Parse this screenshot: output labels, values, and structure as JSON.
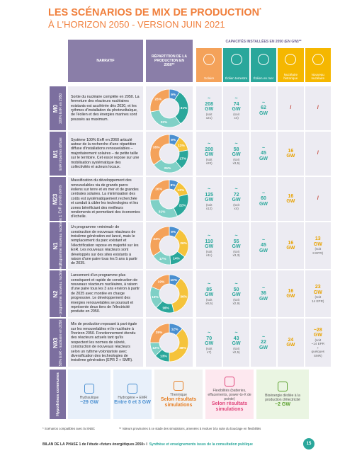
{
  "header": {
    "title": "LES SCÉNARIOS DE MIX DE PRODUCTION",
    "title_mark": "*",
    "subtitle": "À L'HORIZON 2050 - VERSION JUIN 2021"
  },
  "table": {
    "narratif": "NARRATIF",
    "repartition": "RÉPARTITION DE LA PRODUCTION EN 2050**",
    "capacites": "CAPACITÉS INSTALLÉES EN 2050 (EN GW)**",
    "columns": [
      "Solaire",
      "Éolien terrestre",
      "Éolien en mer",
      "Nucléaire historique",
      "Nouveau nucléaire"
    ],
    "rows": [
      {
        "code": "M0",
        "label": "100% EnR en 2050",
        "narrative": "Sortie du nucléaire complète en 2050. La fermeture des réacteurs nucléaires existants est accélérée dès 2030, et les rythmes d'installation du photovoltaïque, de l'éolien et des énergies marines sont poussés au maximum.",
        "shares": [
          9,
          31,
          32,
          28
        ],
        "share_labels": [
          "9%",
          "31%",
          "32%",
          "28%"
        ],
        "capacities": [
          [
            "~",
            "208",
            "GW",
            "(soit",
            "x21)"
          ],
          [
            "~",
            "74",
            "GW",
            "(soit",
            "x4)"
          ],
          [
            "~",
            "62",
            "GW"
          ],
          [
            "/"
          ],
          [
            "/"
          ]
        ]
      },
      {
        "code": "M1",
        "label": "EnR réparties diffuse",
        "narrative": "Système 100% EnR en 2060 articulé autour de la recherche d'une répartition diffuse d'installations renouvelables – majoritairement solaires – de petite taille sur le territoire. Cet essor repose sur une mobilisation systématique des collectivités et acteurs locaux.",
        "shares": [
          9,
          13,
          17,
          26,
          35
        ],
        "share_labels": [
          "9%",
          "13%",
          "17%",
          "26%",
          "35%"
        ],
        "capacities": [
          [
            "~",
            "200",
            "GW",
            "(soit",
            "x20)"
          ],
          [
            "~",
            "58",
            "GW",
            "(soit",
            "x3,5)"
          ],
          [
            "~",
            "45",
            "GW"
          ],
          [
            "16",
            "GW"
          ],
          [
            "/"
          ]
        ]
      },
      {
        "code": "M23",
        "label": "EnR grands parcs",
        "narrative": "Massification du développement des renouvelables via de grands parcs éoliens sur terre et en mer et de grandes centrales solaires. La minimisation des coûts est systématiquement recherchée et conduit à cibler les technologies et les zones bénéficiant des meilleurs rendements et permettant des économies d'échelle.",
        "shares": [
          8,
          13,
          22,
          31,
          26
        ],
        "share_labels": [
          "8%",
          "13%",
          "22%",
          "31%",
          "26%"
        ],
        "capacities": [
          [
            "~",
            "125",
            "GW",
            "(soit",
            "x12)"
          ],
          [
            "~",
            "72",
            "GW",
            "(soit",
            "x4)"
          ],
          [
            "~",
            "60",
            "GW"
          ],
          [
            "16",
            "GW"
          ],
          [
            "/"
          ]
        ]
      },
      {
        "code": "N1",
        "label": "EnR + programme nouveau nucléaire 1",
        "narrative": "Un programme «minimal» de construction de nouveaux réacteurs de troisième génération est lancé, mais le remplacement du parc existant et l'électrification repose en majorité sur les EnR. Les nouveaux réacteurs sont développés sur des sites existants à raison d'une paire tous les 5 ans à partir de 2035.",
        "shares": [
          9,
          26,
          14,
          17,
          34
        ],
        "share_labels": [
          "9%",
          "26%",
          "14%",
          "17%",
          "34%"
        ],
        "capacities": [
          [
            "~",
            "110",
            "GW",
            "(soit",
            "x11)"
          ],
          [
            "~",
            "55",
            "GW",
            "(soit",
            "x3,3)"
          ],
          [
            "~",
            "45",
            "GW"
          ],
          [
            "16",
            "GW"
          ],
          [
            "13",
            "GW",
            "(soit",
            "8 EPR)"
          ]
        ]
      },
      {
        "code": "N2",
        "label": "EnR + programme nouveau nucléaire 2",
        "narrative": "Lancement d'un programme plus conséquent et rapide de construction de nouveaux réacteurs nucléaires, à raison d'une paire tous les 3 ans environ à partir de 2035 avec montée en charge progressive. Le développement des énergies renouvelables se poursuit et représente deux tiers de l'électricité produite en 2050.",
        "shares": [
          10,
          36,
          16,
          19,
          19
        ],
        "share_labels": [
          "10%",
          "36%",
          "16%",
          "19%",
          "19%"
        ],
        "capacities": [
          [
            "~",
            "85",
            "GW",
            "(soit",
            "x8,5)"
          ],
          [
            "~",
            "50",
            "GW",
            "(soit",
            "x2,9)"
          ],
          [
            "~",
            "36",
            "GW"
          ],
          [
            "16",
            "GW"
          ],
          [
            "23",
            "GW",
            "(soit",
            "14 EPR)"
          ]
        ]
      },
      {
        "code": "N03",
        "label": "50% EnR - nucléaire en 2050",
        "narrative": "Mix de production reposant à part égale sur les renouvelables et le nucléaire à l'horizon 2050. Fonctionnement étendu des réacteurs actuels tant qu'ils respectent les normes de sûreté, construction de nouveaux réacteurs selon un rythme volontariste avec diversification des technologies de troisième génération (EPR 2 + SMR).",
        "shares": [
          12,
          38,
          13,
          12,
          25
        ],
        "share_labels": [
          "12%",
          "38%",
          "13%",
          "12%",
          "25%"
        ],
        "capacities": [
          [
            "~",
            "70",
            "GW",
            "(soit",
            "x7)"
          ],
          [
            "~",
            "43",
            "GW",
            "(soit",
            "x2,5)"
          ],
          [
            "~",
            "22",
            "GW"
          ],
          [
            "24",
            "GW"
          ],
          [
            "~28",
            "GW",
            "(soit",
            "~14 EPR",
            "+",
            "quelques",
            "SMR)"
          ]
        ]
      }
    ],
    "share_colors": {
      "M0": [
        "#4a8fd0",
        "#2aa79b",
        "#7fd0c6",
        "#f4a25a"
      ],
      "other": [
        "#4a8fd0",
        "#f5c33b",
        "#2aa79b",
        "#7fd0c6",
        "#f4a25a"
      ]
    },
    "common": {
      "label": "Hypothèses communes",
      "items": [
        {
          "name": "Hydraulique",
          "value": "~29 GW"
        },
        {
          "name": "Hydrogène + EMR",
          "value": "Entre 0 et 3 GW"
        },
        {
          "name": "Thermique",
          "value": "Selon résultats simulations"
        },
        {
          "name": "Flexibilités (batteries, effacements, power-to-X de pointe)",
          "value": "Selon résultats simulations"
        },
        {
          "name": "Bioénergie dédiée à la production d'électricité",
          "value": "~2 GW"
        }
      ]
    }
  },
  "footnotes": [
    "* Scénarios compatibles avec la SNBC",
    "** Valeurs provisoires à ce stade des simulations, amenées à évoluer à la suite du bouclage en flexibilités"
  ],
  "footer": {
    "left": "BILAN DE LA PHASE 1 de l'étude «futurs énergétiques 2050» I",
    "right": "Synthèse et enseignements issus de la consultation publique",
    "page": "15"
  }
}
